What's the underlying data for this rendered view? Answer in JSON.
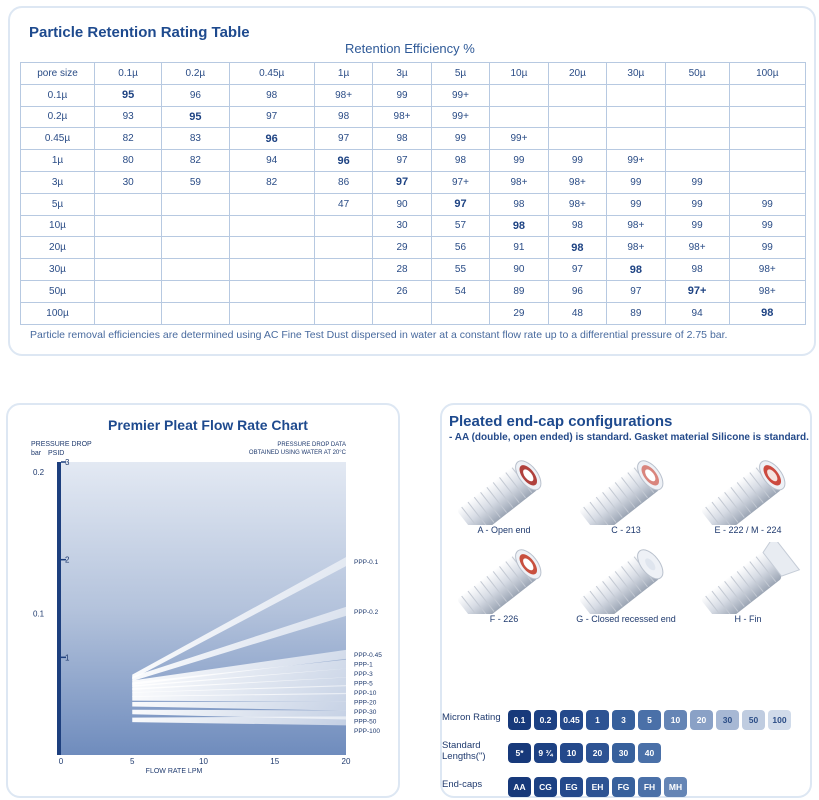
{
  "retention_table": {
    "title": "Particle Retention Rating Table",
    "subtitle": "Retention Efficiency %",
    "corner_label": "pore size",
    "columns": [
      "0.1µ",
      "0.2µ",
      "0.45µ",
      "1µ",
      "3µ",
      "5µ",
      "10µ",
      "20µ",
      "30µ",
      "50µ",
      "100µ"
    ],
    "rows": [
      {
        "pore": "0.1µ",
        "values": [
          "95",
          "96",
          "98",
          "98+",
          "99",
          "99+",
          "",
          "",
          "",
          "",
          ""
        ],
        "bold_index": 0
      },
      {
        "pore": "0.2µ",
        "values": [
          "93",
          "95",
          "97",
          "98",
          "98+",
          "99+",
          "",
          "",
          "",
          "",
          ""
        ],
        "bold_index": 1
      },
      {
        "pore": "0.45µ",
        "values": [
          "82",
          "83",
          "96",
          "97",
          "98",
          "99",
          "99+",
          "",
          "",
          "",
          ""
        ],
        "bold_index": 2
      },
      {
        "pore": "1µ",
        "values": [
          "80",
          "82",
          "94",
          "96",
          "97",
          "98",
          "99",
          "99",
          "99+",
          "",
          ""
        ],
        "bold_index": 3
      },
      {
        "pore": "3µ",
        "values": [
          "30",
          "59",
          "82",
          "86",
          "97",
          "97+",
          "98+",
          "98+",
          "99",
          "99",
          ""
        ],
        "bold_index": 4
      },
      {
        "pore": "5µ",
        "values": [
          "",
          "",
          "",
          "47",
          "90",
          "97",
          "98",
          "98+",
          "99",
          "99",
          "99"
        ],
        "bold_index": 5
      },
      {
        "pore": "10µ",
        "values": [
          "",
          "",
          "",
          "",
          "30",
          "57",
          "98",
          "98",
          "98+",
          "99",
          "99"
        ],
        "bold_index": 6
      },
      {
        "pore": "20µ",
        "values": [
          "",
          "",
          "",
          "",
          "29",
          "56",
          "91",
          "98",
          "98+",
          "98+",
          "99"
        ],
        "bold_index": 7
      },
      {
        "pore": "30µ",
        "values": [
          "",
          "",
          "",
          "",
          "28",
          "55",
          "90",
          "97",
          "98",
          "98",
          "98+"
        ],
        "bold_index": 8
      },
      {
        "pore": "50µ",
        "values": [
          "",
          "",
          "",
          "",
          "26",
          "54",
          "89",
          "96",
          "97",
          "97+",
          "98+"
        ],
        "bold_index": 9
      },
      {
        "pore": "100µ",
        "values": [
          "",
          "",
          "",
          "",
          "",
          "",
          "29",
          "48",
          "89",
          "94",
          "98"
        ],
        "bold_index": 10
      }
    ],
    "footnote": "Particle removal efficiencies are determined using AC Fine Test Dust dispersed in water at a constant flow rate up to a differential pressure of 2.75 bar."
  },
  "chart_data": {
    "type": "line",
    "title": "Premier Pleat Flow Rate Chart",
    "xlabel": "FLOW RATE LPM",
    "ylabel": "PRESSURE DROP",
    "ylabel_left_unit": "bar",
    "ylabel_right_unit": "PSID",
    "note_line1": "PRESSURE DROP DATA",
    "note_line2": "OBTAINED USING WATER AT 20°C",
    "xlim": [
      0,
      20
    ],
    "ylim_psid": [
      0,
      3
    ],
    "x_ticks": [
      "0",
      "5",
      "10",
      "15",
      "20"
    ],
    "y_ticks_bar": [
      {
        "label": "0.1",
        "psid": 1.45
      },
      {
        "label": "0.2",
        "psid": 2.9
      }
    ],
    "y_ticks_psid": [
      {
        "label": "1",
        "value": 1
      },
      {
        "label": "2",
        "value": 2
      },
      {
        "label": "3",
        "value": 3
      }
    ],
    "series": [
      {
        "name": "PPP-0.1",
        "x": [
          5,
          20
        ],
        "y": [
          0.8,
          1.98
        ]
      },
      {
        "name": "PPP-0.2",
        "x": [
          5,
          20
        ],
        "y": [
          0.78,
          1.47
        ]
      },
      {
        "name": "PPP-0.45",
        "x": [
          5,
          20
        ],
        "y": [
          0.74,
          1.03
        ]
      },
      {
        "name": "PPP-1",
        "x": [
          5,
          20
        ],
        "y": [
          0.72,
          0.93
        ]
      },
      {
        "name": "PPP-3",
        "x": [
          5,
          20
        ],
        "y": [
          0.69,
          0.84
        ]
      },
      {
        "name": "PPP-5",
        "x": [
          5,
          20
        ],
        "y": [
          0.66,
          0.75
        ]
      },
      {
        "name": "PPP-10",
        "x": [
          5,
          20
        ],
        "y": [
          0.62,
          0.67
        ]
      },
      {
        "name": "PPP-20",
        "x": [
          5,
          20
        ],
        "y": [
          0.58,
          0.59
        ]
      },
      {
        "name": "PPP-30",
        "x": [
          5,
          20
        ],
        "y": [
          0.52,
          0.5
        ]
      },
      {
        "name": "PPP-50",
        "x": [
          5,
          20
        ],
        "y": [
          0.44,
          0.41
        ]
      },
      {
        "name": "PPP-100",
        "x": [
          5,
          20
        ],
        "y": [
          0.36,
          0.35
        ]
      }
    ]
  },
  "endcaps": {
    "title": "Pleated end-cap configurations",
    "note": "- AA (double, open ended) is standard. Gasket material Silicone is standard.",
    "items": [
      {
        "label": "A - Open end",
        "style": "open"
      },
      {
        "label": "C - 213",
        "style": "c213"
      },
      {
        "label": "E - 222 / M - 224",
        "style": "e222"
      },
      {
        "label": "F - 226",
        "style": "f226"
      },
      {
        "label": "G - Closed recessed end",
        "style": "closed"
      },
      {
        "label": "H - Fin",
        "style": "fin"
      }
    ],
    "options": [
      {
        "label": "Micron Rating",
        "chips": [
          "0.1",
          "0.2",
          "0.45",
          "1",
          "3",
          "5",
          "10",
          "20",
          "30",
          "50",
          "100"
        ]
      },
      {
        "label": "Standard Lengths(\")",
        "chips": [
          "5*",
          "9 ¾",
          "10",
          "20",
          "30",
          "40"
        ]
      },
      {
        "label": "End-caps",
        "chips": [
          "AA",
          "CG",
          "EG",
          "EH",
          "FG",
          "FH",
          "MH"
        ]
      }
    ],
    "chip_colors": [
      "#17397a",
      "#1d4183",
      "#24498b",
      "#2d5393",
      "#37609c",
      "#4a70a8",
      "#6585b5",
      "#8aa1c6",
      "#a7b8d4",
      "#bfcce0",
      "#d0dbea"
    ]
  }
}
